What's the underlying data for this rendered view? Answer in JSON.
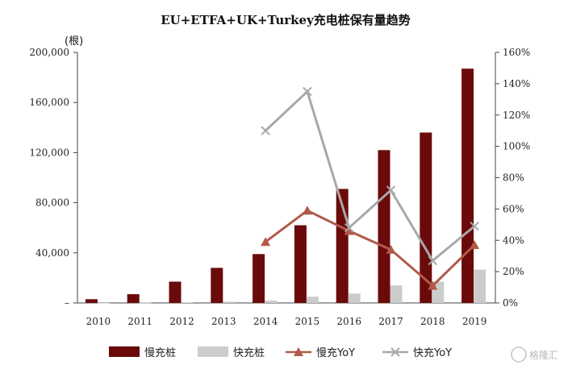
{
  "chart_data": {
    "type": "bar",
    "title": "EU+ETFA+UK+Turkey充电桩保有量趋势",
    "y_unit_label": "(根)",
    "categories": [
      "2010",
      "2011",
      "2012",
      "2013",
      "2014",
      "2015",
      "2016",
      "2017",
      "2018",
      "2019"
    ],
    "ylim_left": [
      0,
      200000
    ],
    "yticks_left": [
      "–",
      "40,000",
      "80,000",
      "120,000",
      "160,000",
      "200,000"
    ],
    "ylim_right": [
      0,
      1.6
    ],
    "yticks_right": [
      "0%",
      "20%",
      "40%",
      "60%",
      "80%",
      "100%",
      "120%",
      "140%",
      "160%"
    ],
    "bar_series": [
      {
        "name": "慢充桩",
        "color": "#6b0a0a",
        "values": [
          3000,
          7000,
          17000,
          28000,
          39000,
          62000,
          91000,
          122000,
          136000,
          187000
        ]
      },
      {
        "name": "快充桩",
        "color": "#cccccc",
        "values": [
          100,
          200,
          400,
          1000,
          2000,
          5000,
          7500,
          14000,
          17000,
          26500
        ]
      }
    ],
    "line_series": [
      {
        "name": "慢充YoY",
        "color": "#b05a48",
        "marker": "triangle",
        "values": [
          null,
          null,
          null,
          null,
          0.39,
          0.59,
          0.46,
          0.34,
          0.11,
          0.37
        ]
      },
      {
        "name": "快充YoY",
        "color": "#a8a8a8",
        "marker": "x",
        "values": [
          null,
          null,
          null,
          null,
          1.1,
          1.35,
          0.48,
          0.72,
          0.27,
          0.49
        ]
      }
    ],
    "legend_position": "bottom",
    "watermark": "格隆汇"
  }
}
